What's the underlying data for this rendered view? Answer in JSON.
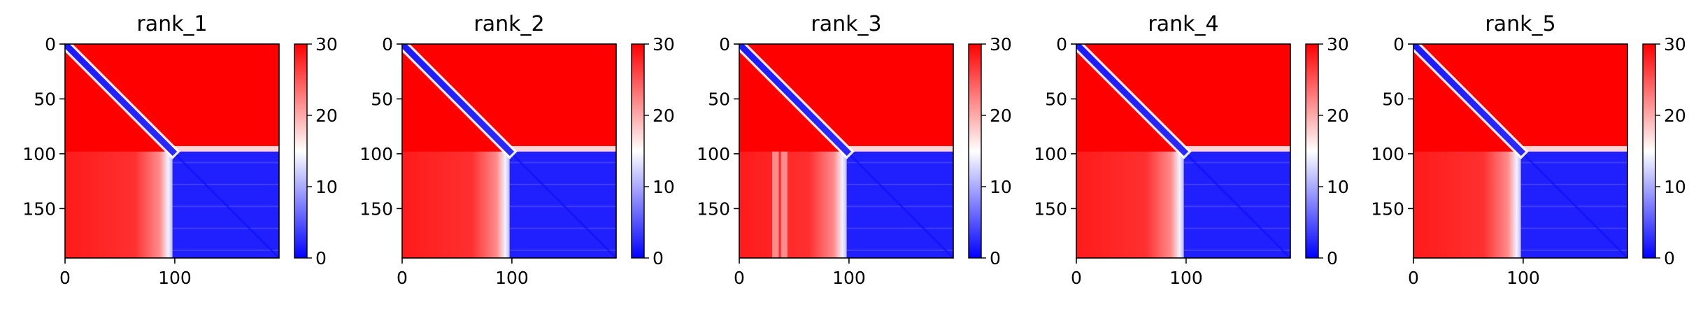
{
  "colors": {
    "low": "#0000ff",
    "mid": "#ffffff",
    "high": "#ff0000",
    "axis": "#000000"
  },
  "colormap": "bwr",
  "chart_data": [
    {
      "type": "heatmap",
      "title": "rank_1",
      "xlabel": "",
      "ylabel": "",
      "n": 195,
      "split": 98,
      "xlim": [
        0,
        195
      ],
      "ylim": [
        195,
        0
      ],
      "x_ticks": [
        0,
        100
      ],
      "y_ticks": [
        0,
        50,
        100,
        150
      ],
      "colorbar": {
        "ticks": [
          0,
          10,
          20,
          30
        ],
        "vmin": 0,
        "vmax": 30
      },
      "description_values": {
        "intra_block_low": 0,
        "inter_block_high": 30
      },
      "lower_bands": []
    },
    {
      "type": "heatmap",
      "title": "rank_2",
      "xlabel": "",
      "ylabel": "",
      "n": 195,
      "split": 98,
      "xlim": [
        0,
        195
      ],
      "ylim": [
        195,
        0
      ],
      "x_ticks": [
        0,
        100
      ],
      "y_ticks": [
        0,
        50,
        100,
        150
      ],
      "colorbar": {
        "ticks": [
          0,
          10,
          20,
          30
        ],
        "vmin": 0,
        "vmax": 30
      },
      "description_values": {
        "intra_block_low": 0,
        "inter_block_high": 30
      },
      "lower_bands": []
    },
    {
      "type": "heatmap",
      "title": "rank_3",
      "xlabel": "",
      "ylabel": "",
      "n": 195,
      "split": 98,
      "xlim": [
        0,
        195
      ],
      "ylim": [
        195,
        0
      ],
      "x_ticks": [
        0,
        100
      ],
      "y_ticks": [
        0,
        50,
        100,
        150
      ],
      "colorbar": {
        "ticks": [
          0,
          10,
          20,
          30
        ],
        "vmin": 0,
        "vmax": 30
      },
      "description_values": {
        "intra_block_low": 0,
        "inter_block_high": 30
      },
      "lower_bands": [
        30,
        38
      ]
    },
    {
      "type": "heatmap",
      "title": "rank_4",
      "xlabel": "",
      "ylabel": "",
      "n": 195,
      "split": 98,
      "xlim": [
        0,
        195
      ],
      "ylim": [
        195,
        0
      ],
      "x_ticks": [
        0,
        100
      ],
      "y_ticks": [
        0,
        50,
        100,
        150
      ],
      "colorbar": {
        "ticks": [
          0,
          10,
          20,
          30
        ],
        "vmin": 0,
        "vmax": 30
      },
      "description_values": {
        "intra_block_low": 0,
        "inter_block_high": 30
      },
      "lower_bands": []
    },
    {
      "type": "heatmap",
      "title": "rank_5",
      "xlabel": "",
      "ylabel": "",
      "n": 195,
      "split": 98,
      "xlim": [
        0,
        195
      ],
      "ylim": [
        195,
        0
      ],
      "x_ticks": [
        0,
        100
      ],
      "y_ticks": [
        0,
        50,
        100,
        150
      ],
      "colorbar": {
        "ticks": [
          0,
          10,
          20,
          30
        ],
        "vmin": 0,
        "vmax": 30
      },
      "description_values": {
        "intra_block_low": 0,
        "inter_block_high": 30
      },
      "lower_bands": []
    }
  ]
}
